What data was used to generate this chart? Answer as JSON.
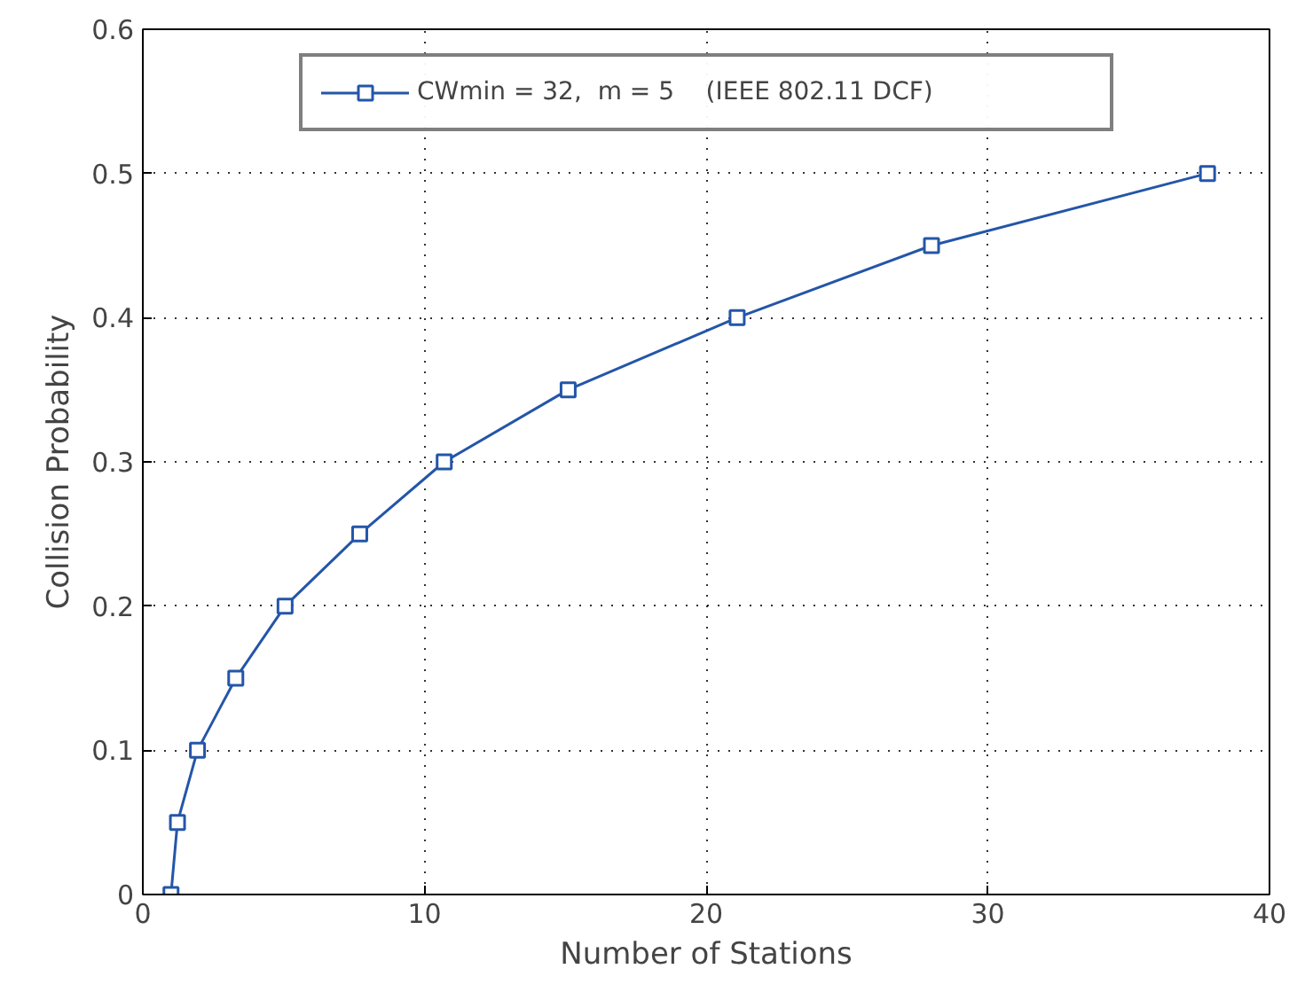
{
  "chart_data": {
    "type": "line",
    "xlabel": "Number of Stations",
    "ylabel": "Collision Probability",
    "x": [
      1,
      1.23,
      1.94,
      3.3,
      5.05,
      7.7,
      10.7,
      15.1,
      21.1,
      28.0,
      37.8
    ],
    "series": [
      {
        "name": "CWmin = 32,  m = 5    (IEEE 802.11 DCF)",
        "color": "#2456a8",
        "values": [
          0,
          0.05,
          0.1,
          0.15,
          0.2,
          0.25,
          0.3,
          0.35,
          0.4,
          0.45,
          0.5
        ]
      }
    ],
    "xlim": [
      0,
      40
    ],
    "xticks": [
      0,
      10,
      20,
      30,
      40
    ],
    "ylim": [
      0,
      0.6
    ],
    "yticks": [
      0,
      0.1,
      0.2,
      0.3,
      0.4,
      0.5,
      0.6
    ],
    "grid": true,
    "legend": "top",
    "marker": "square",
    "line_style": "solid"
  }
}
